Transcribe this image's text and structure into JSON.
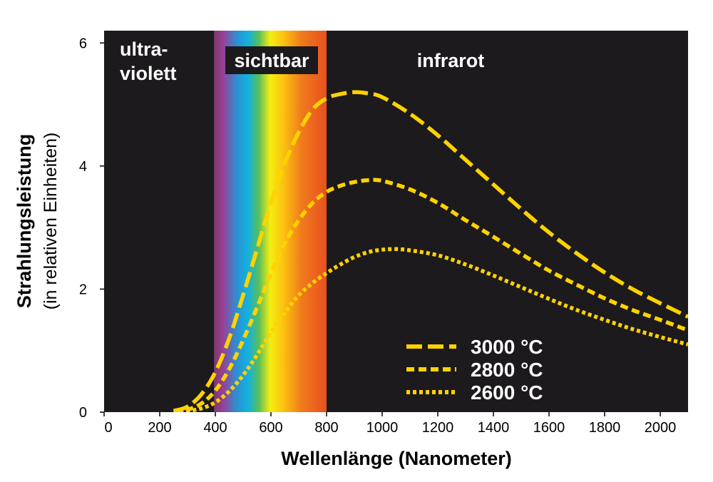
{
  "chart_data": {
    "type": "line",
    "xlabel": "Wellenlänge (Nanometer)",
    "ylabel": "Strahlungsleistung",
    "ylabel_sub": "(in relativen Einheiten)",
    "xlim": [
      0,
      2100
    ],
    "ylim": [
      0,
      6.2
    ],
    "x_ticks": [
      "0",
      "200",
      "400",
      "600",
      "800",
      "1000",
      "1200",
      "1400",
      "1600",
      "1800",
      "2000"
    ],
    "y_ticks": [
      "0",
      "2",
      "4",
      "6"
    ],
    "regions": {
      "ultraviolet": "ultra-\nviolett",
      "visible": "sichtbar",
      "infrared": "infrarot",
      "visible_range": [
        395,
        800
      ]
    },
    "legend_position": "bottom-right",
    "colors": {
      "background": "#1c1a1c",
      "curves": "#ffd200"
    },
    "series": [
      {
        "name": "3000 °C",
        "style": "dashed",
        "x": [
          250,
          300,
          350,
          400,
          450,
          500,
          550,
          600,
          650,
          700,
          750,
          800,
          850,
          900,
          950,
          1000,
          1100,
          1200,
          1300,
          1400,
          1500,
          1600,
          1700,
          1800,
          1900,
          2000,
          2100
        ],
        "y": [
          0.02,
          0.09,
          0.29,
          0.65,
          1.2,
          1.9,
          2.65,
          3.4,
          4.05,
          4.55,
          4.92,
          5.1,
          5.17,
          5.2,
          5.18,
          5.12,
          4.85,
          4.5,
          4.1,
          3.7,
          3.3,
          2.92,
          2.58,
          2.27,
          2.0,
          1.77,
          1.55
        ]
      },
      {
        "name": "2800 °C",
        "style": "dashed-short",
        "x": [
          250,
          300,
          350,
          400,
          450,
          500,
          550,
          600,
          650,
          700,
          750,
          800,
          850,
          900,
          950,
          1000,
          1100,
          1200,
          1300,
          1400,
          1500,
          1600,
          1700,
          1800,
          1900,
          2000,
          2100
        ],
        "y": [
          0.01,
          0.04,
          0.14,
          0.35,
          0.7,
          1.17,
          1.7,
          2.25,
          2.75,
          3.12,
          3.4,
          3.58,
          3.68,
          3.74,
          3.77,
          3.76,
          3.62,
          3.4,
          3.12,
          2.85,
          2.57,
          2.3,
          2.07,
          1.85,
          1.66,
          1.5,
          1.33
        ]
      },
      {
        "name": "2600 °C",
        "style": "dotted",
        "x": [
          250,
          300,
          350,
          400,
          450,
          500,
          550,
          600,
          650,
          700,
          750,
          800,
          850,
          900,
          950,
          1000,
          1050,
          1100,
          1200,
          1300,
          1400,
          1500,
          1600,
          1700,
          1800,
          1900,
          2000,
          2100
        ],
        "y": [
          0.0,
          0.02,
          0.06,
          0.16,
          0.34,
          0.6,
          0.93,
          1.3,
          1.62,
          1.9,
          2.1,
          2.26,
          2.4,
          2.52,
          2.6,
          2.64,
          2.65,
          2.63,
          2.55,
          2.4,
          2.22,
          2.03,
          1.84,
          1.66,
          1.5,
          1.35,
          1.22,
          1.1
        ]
      }
    ]
  }
}
